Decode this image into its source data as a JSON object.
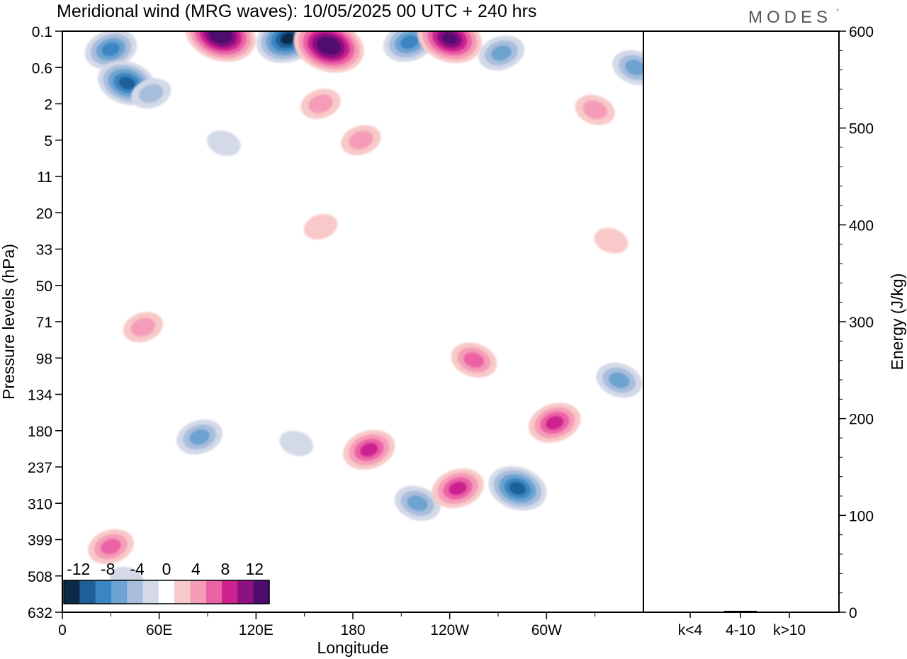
{
  "title": "Meridional wind (MRG waves):  10/05/2025  00 UTC  + 240 hrs",
  "brand": "MODES",
  "brand_mark": "°",
  "colors": {
    "neg": [
      "#0b2a4a",
      "#1f5e99",
      "#3a86c2",
      "#6da3d1",
      "#a7bedd",
      "#d4d9e8"
    ],
    "pos": [
      "#f8c9c8",
      "#f59db8",
      "#ec62a6",
      "#cc2290",
      "#8c1181",
      "#4f0a6e"
    ],
    "frame": "#000000"
  },
  "chart_data": [
    {
      "type": "heatmap",
      "variable": "Meridional wind",
      "xlabel": "Longitude",
      "ylabel": "Pressure levels (hPa)",
      "x_ticks": [
        "0",
        "60E",
        "120E",
        "180",
        "120W",
        "60W"
      ],
      "x_tick_values": [
        0,
        60,
        120,
        180,
        240,
        300
      ],
      "xlim": [
        0,
        360
      ],
      "y_levels": [
        "0.1",
        "0.6",
        "2",
        "5",
        "11",
        "20",
        "33",
        "50",
        "71",
        "98",
        "134",
        "180",
        "237",
        "310",
        "399",
        "508",
        "632"
      ],
      "colorbar": {
        "labels": [
          "-12",
          "-8",
          "-4",
          "0",
          "4",
          "8",
          "12"
        ],
        "values": [
          -12,
          -8,
          -4,
          0,
          4,
          8,
          12
        ],
        "levels": [
          -14,
          -12,
          -10,
          -8,
          -6,
          -4,
          -2,
          2,
          4,
          6,
          8,
          10,
          12,
          14
        ]
      },
      "features": [
        {
          "lon": 30,
          "level": "0.35",
          "value": -8
        },
        {
          "lon": 40,
          "level": "1.2",
          "value": -10
        },
        {
          "lon": 55,
          "level": "1.6",
          "value": -4
        },
        {
          "lon": 98,
          "level": "0.15",
          "value": 14
        },
        {
          "lon": 140,
          "level": "0.2",
          "value": -12
        },
        {
          "lon": 165,
          "level": "0.3",
          "value": 14
        },
        {
          "lon": 215,
          "level": "0.25",
          "value": -8
        },
        {
          "lon": 240,
          "level": "0.2",
          "value": 12
        },
        {
          "lon": 272,
          "level": "0.4",
          "value": -6
        },
        {
          "lon": 355,
          "level": "0.6",
          "value": -6
        },
        {
          "lon": 160,
          "level": "2",
          "value": 4
        },
        {
          "lon": 330,
          "level": "2.5",
          "value": 4
        },
        {
          "lon": 185,
          "level": "5",
          "value": 4
        },
        {
          "lon": 100,
          "level": "5.5",
          "value": -2
        },
        {
          "lon": 160,
          "level": "25",
          "value": 2
        },
        {
          "lon": 340,
          "level": "30",
          "value": 2
        },
        {
          "lon": 50,
          "level": "75",
          "value": 4
        },
        {
          "lon": 255,
          "level": "100",
          "value": 6
        },
        {
          "lon": 85,
          "level": "190",
          "value": -6
        },
        {
          "lon": 145,
          "level": "200",
          "value": -2
        },
        {
          "lon": 190,
          "level": "210",
          "value": 8
        },
        {
          "lon": 220,
          "level": "310",
          "value": -6
        },
        {
          "lon": 245,
          "level": "280",
          "value": 8
        },
        {
          "lon": 282,
          "level": "280",
          "value": -10
        },
        {
          "lon": 305,
          "level": "170",
          "value": 8
        },
        {
          "lon": 345,
          "level": "120",
          "value": -6
        },
        {
          "lon": 30,
          "level": "420",
          "value": 6
        },
        {
          "lon": 40,
          "level": "520",
          "value": -2
        }
      ]
    },
    {
      "type": "bar",
      "categories": [
        "k<4",
        "4-10",
        "k>10"
      ],
      "values": [
        0.5,
        1.5,
        0.5
      ],
      "ylabel": "Energy (J/kg)",
      "ylim": [
        0,
        600
      ],
      "y_ticks": [
        "0",
        "100",
        "200",
        "300",
        "400",
        "500",
        "600"
      ],
      "y_tick_values": [
        0,
        100,
        200,
        300,
        400,
        500,
        600
      ]
    }
  ]
}
